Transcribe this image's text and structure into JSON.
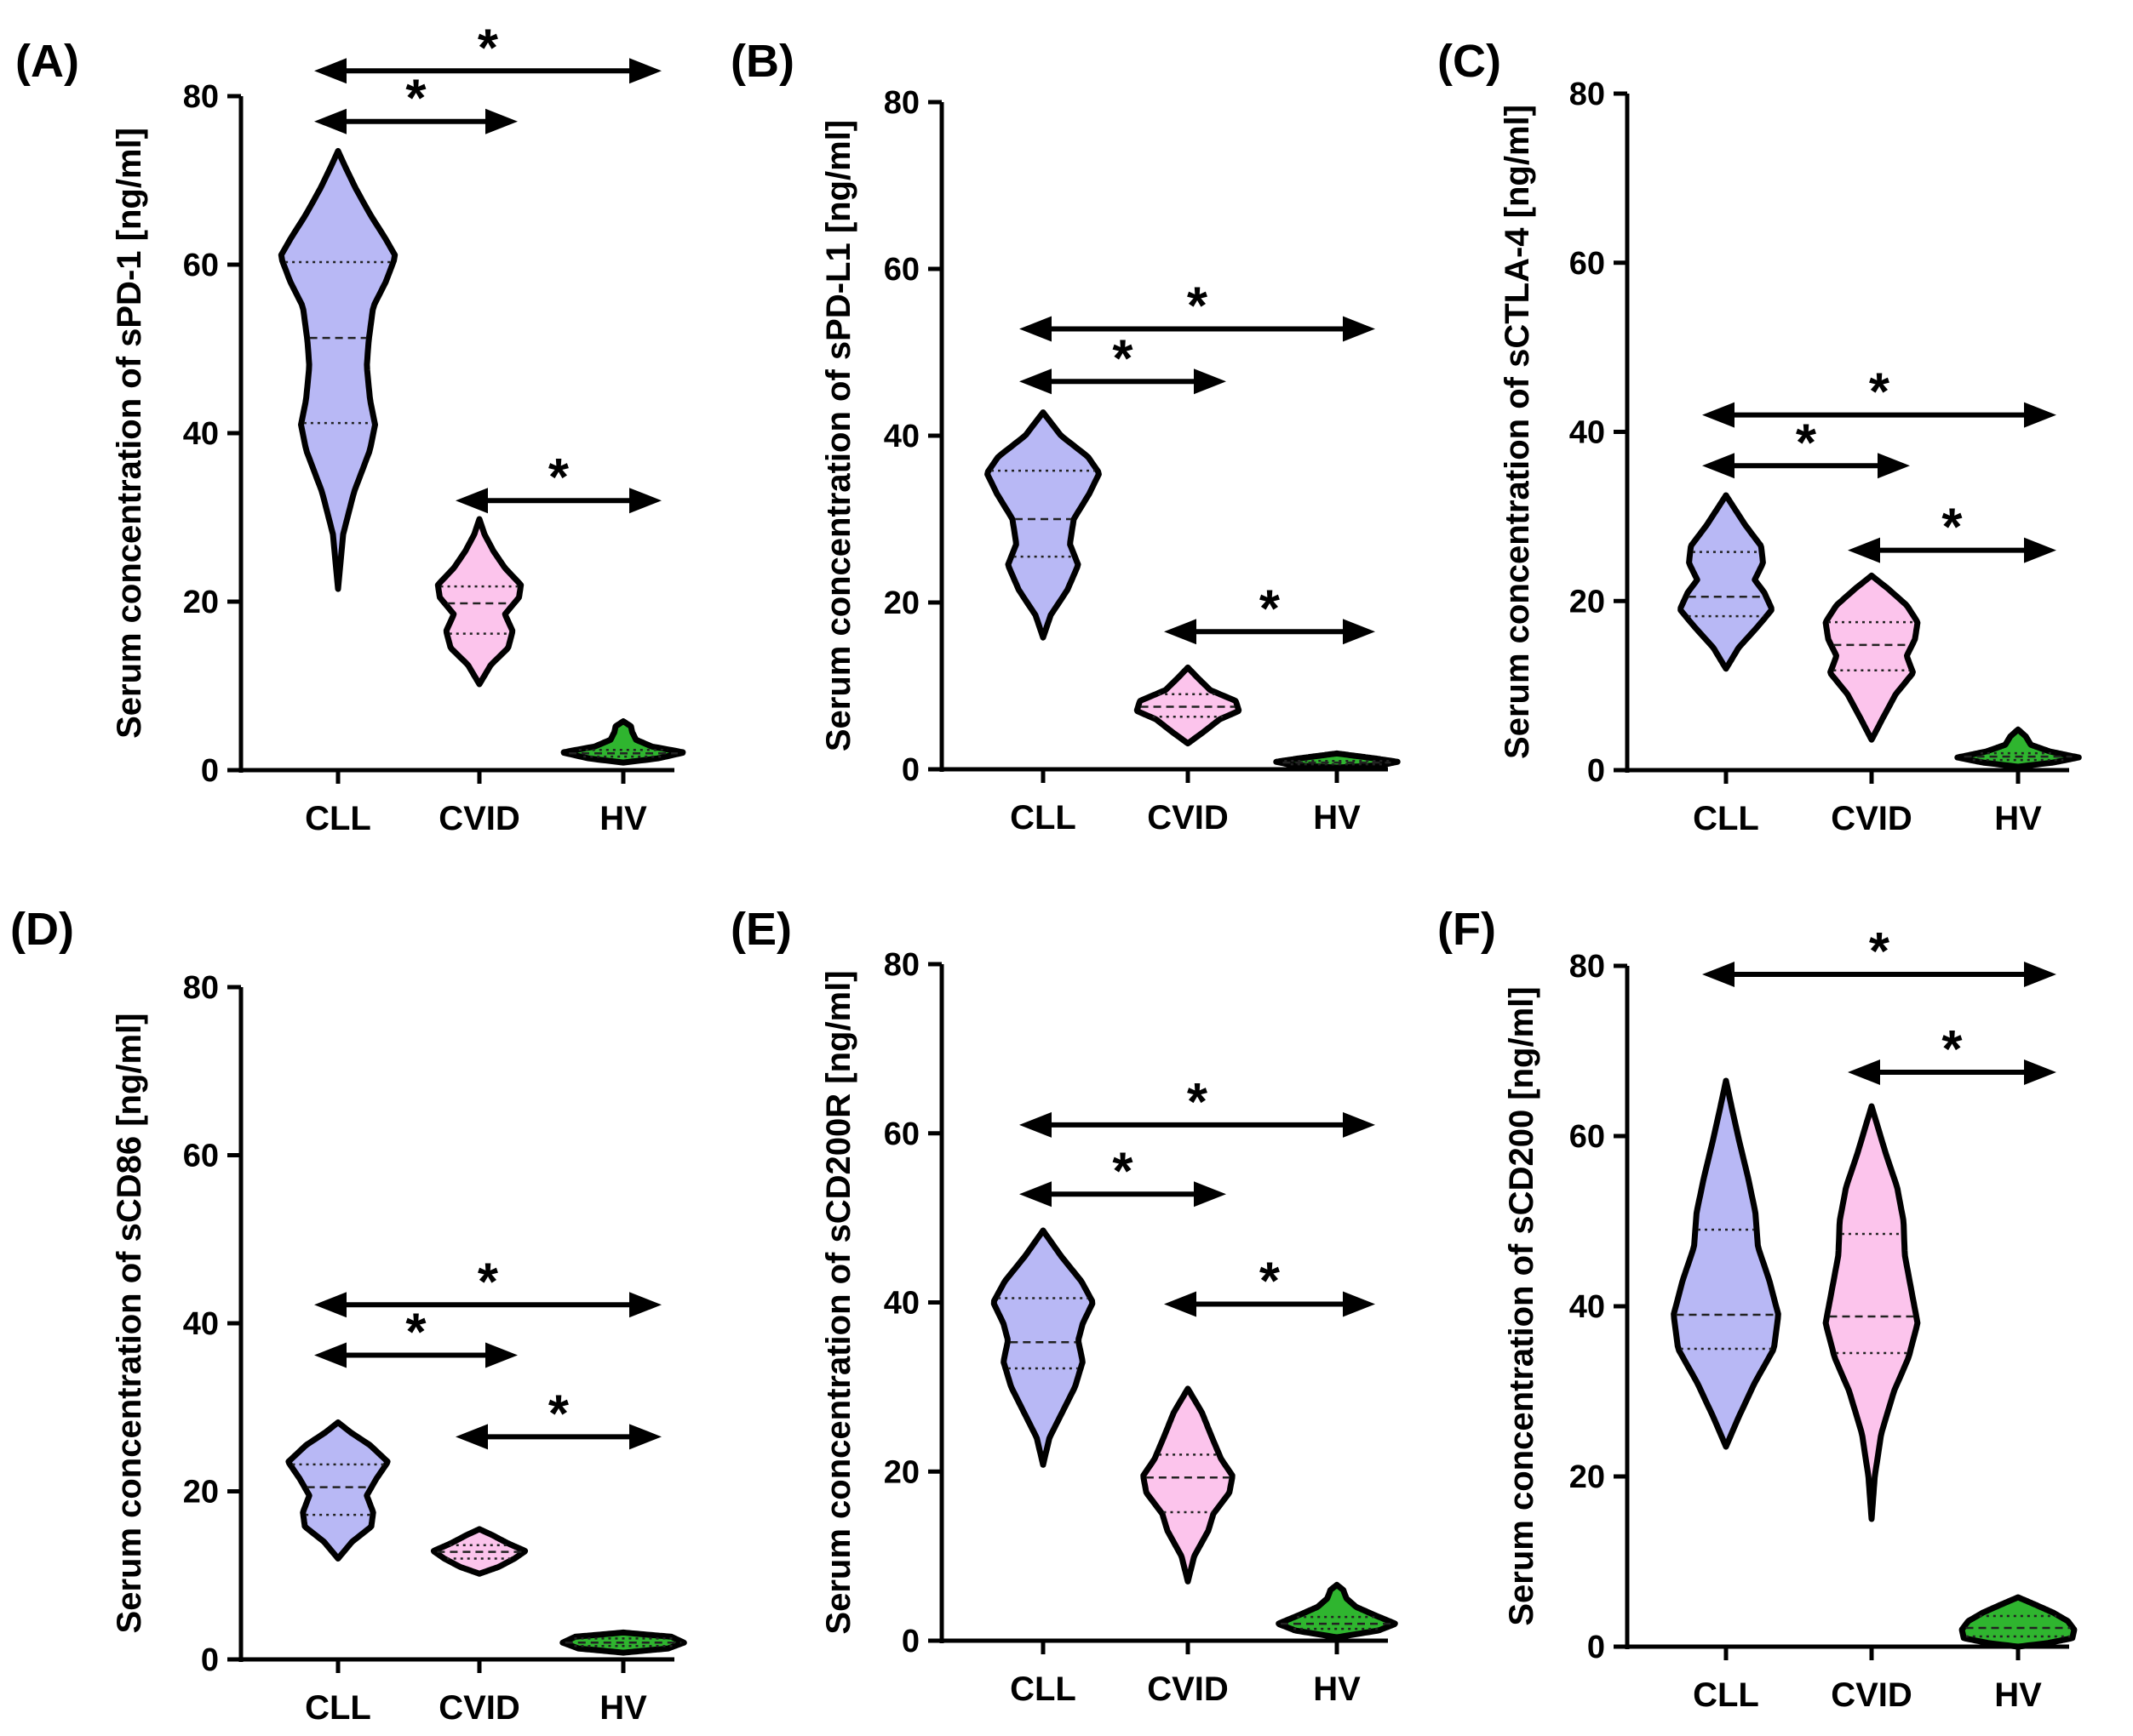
{
  "figure": {
    "colors": {
      "CLL": "#b8b8f5",
      "CVID": "#fcc4ec",
      "HV": "#2fb52f",
      "outline": "#000000"
    },
    "significance_marker": "*"
  },
  "chart_data": [
    {
      "type": "violin",
      "panel": "(A)",
      "ylabel": "Serum concentration of sPD-1 [ng/ml]",
      "ylim": [
        0,
        80
      ],
      "yticks": [
        0,
        20,
        40,
        60,
        80
      ],
      "categories": [
        "CLL",
        "CVID",
        "HV"
      ],
      "groups": [
        {
          "name": "CLL",
          "min": 21.5,
          "max": 73.5,
          "median": 51.3,
          "q1": 41.2,
          "q3": 60.3,
          "shape": [
            [
              21.5,
              0
            ],
            [
              28,
              0.08
            ],
            [
              33,
              0.25
            ],
            [
              38,
              0.5
            ],
            [
              41,
              0.58
            ],
            [
              44,
              0.5
            ],
            [
              48,
              0.45
            ],
            [
              51,
              0.48
            ],
            [
              55,
              0.55
            ],
            [
              58,
              0.75
            ],
            [
              61,
              0.9
            ],
            [
              63,
              0.75
            ],
            [
              66,
              0.5
            ],
            [
              69,
              0.28
            ],
            [
              71.5,
              0.12
            ],
            [
              73.5,
              0
            ]
          ]
        },
        {
          "name": "CVID",
          "min": 10.2,
          "max": 29.8,
          "median": 19.8,
          "q1": 16.2,
          "q3": 21.8,
          "shape": [
            [
              10.2,
              0
            ],
            [
              12.5,
              0.18
            ],
            [
              14.5,
              0.45
            ],
            [
              16.5,
              0.52
            ],
            [
              18.5,
              0.4
            ],
            [
              20.5,
              0.62
            ],
            [
              22,
              0.65
            ],
            [
              24,
              0.4
            ],
            [
              26,
              0.22
            ],
            [
              28,
              0.08
            ],
            [
              29.8,
              0
            ]
          ]
        },
        {
          "name": "HV",
          "min": 0.9,
          "max": 5.8,
          "median": 2.0,
          "q1": 1.6,
          "q3": 2.4,
          "shape": [
            [
              0.9,
              0
            ],
            [
              1.4,
              0.55
            ],
            [
              2.1,
              0.95
            ],
            [
              2.8,
              0.45
            ],
            [
              3.6,
              0.2
            ],
            [
              4.5,
              0.14
            ],
            [
              5.2,
              0.12
            ],
            [
              5.8,
              0
            ]
          ]
        }
      ],
      "comparisons": [
        {
          "from": "CLL",
          "to": "HV",
          "y": 83,
          "label": "*"
        },
        {
          "from": "CLL",
          "to": "CVID",
          "y": 77,
          "label": "*"
        },
        {
          "from": "CVID",
          "to": "HV",
          "y": 32,
          "label": "*"
        }
      ]
    },
    {
      "type": "violin",
      "panel": "(B)",
      "ylabel": "Serum concentration of sPD-L1 [ng/ml]",
      "ylim": [
        0,
        80
      ],
      "yticks": [
        0,
        20,
        40,
        60,
        80
      ],
      "categories": [
        "CLL",
        "CVID",
        "HV"
      ],
      "groups": [
        {
          "name": "CLL",
          "min": 15.8,
          "max": 42.8,
          "median": 30.0,
          "q1": 25.5,
          "q3": 35.8,
          "shape": [
            [
              15.8,
              0
            ],
            [
              18.5,
              0.12
            ],
            [
              21.5,
              0.38
            ],
            [
              24.5,
              0.55
            ],
            [
              27,
              0.42
            ],
            [
              30,
              0.48
            ],
            [
              33,
              0.72
            ],
            [
              35.5,
              0.88
            ],
            [
              37.5,
              0.7
            ],
            [
              40,
              0.28
            ],
            [
              42.8,
              0
            ]
          ]
        },
        {
          "name": "CVID",
          "min": 3.1,
          "max": 12.2,
          "median": 7.5,
          "q1": 6.3,
          "q3": 9.0,
          "shape": [
            [
              3.1,
              0
            ],
            [
              4.5,
              0.25
            ],
            [
              6,
              0.5
            ],
            [
              7,
              0.8
            ],
            [
              8.2,
              0.75
            ],
            [
              9.5,
              0.35
            ],
            [
              11,
              0.15
            ],
            [
              12.2,
              0
            ]
          ]
        },
        {
          "name": "HV",
          "min": 0.2,
          "max": 1.9,
          "median": 0.8,
          "q1": 0.6,
          "q3": 1.0,
          "shape": [
            [
              0.2,
              0
            ],
            [
              0.5,
              0.7
            ],
            [
              0.9,
              0.95
            ],
            [
              1.3,
              0.6
            ],
            [
              1.9,
              0
            ]
          ]
        }
      ],
      "comparisons": [
        {
          "from": "CLL",
          "to": "HV",
          "y": 52.8,
          "label": "*"
        },
        {
          "from": "CLL",
          "to": "CVID",
          "y": 46.5,
          "label": "*"
        },
        {
          "from": "CVID",
          "to": "HV",
          "y": 16.5,
          "label": "*"
        }
      ]
    },
    {
      "type": "violin",
      "panel": "(C)",
      "ylabel": "Serum concentration of sCTLA-4 [ng/ml]",
      "ylim": [
        0,
        80
      ],
      "yticks": [
        0,
        20,
        40,
        60,
        80
      ],
      "categories": [
        "CLL",
        "CVID",
        "HV"
      ],
      "groups": [
        {
          "name": "CLL",
          "min": 12.0,
          "max": 32.5,
          "median": 20.5,
          "q1": 18.2,
          "q3": 25.8,
          "shape": [
            [
              12,
              0
            ],
            [
              14.5,
              0.2
            ],
            [
              17,
              0.5
            ],
            [
              19,
              0.72
            ],
            [
              21,
              0.6
            ],
            [
              22.5,
              0.45
            ],
            [
              24.5,
              0.58
            ],
            [
              26.5,
              0.55
            ],
            [
              29,
              0.3
            ],
            [
              32.5,
              0
            ]
          ]
        },
        {
          "name": "CVID",
          "min": 3.6,
          "max": 23.0,
          "median": 14.8,
          "q1": 11.8,
          "q3": 17.5,
          "shape": [
            [
              3.6,
              0
            ],
            [
              6.5,
              0.2
            ],
            [
              9,
              0.38
            ],
            [
              11.5,
              0.65
            ],
            [
              13.5,
              0.55
            ],
            [
              15.5,
              0.68
            ],
            [
              17.5,
              0.72
            ],
            [
              19.5,
              0.55
            ],
            [
              21.5,
              0.25
            ],
            [
              23,
              0
            ]
          ]
        },
        {
          "name": "HV",
          "min": 0.4,
          "max": 4.8,
          "median": 1.6,
          "q1": 1.2,
          "q3": 2.0,
          "shape": [
            [
              0.4,
              0
            ],
            [
              0.9,
              0.55
            ],
            [
              1.5,
              0.95
            ],
            [
              2.2,
              0.5
            ],
            [
              3,
              0.2
            ],
            [
              4,
              0.12
            ],
            [
              4.8,
              0
            ]
          ]
        }
      ],
      "comparisons": [
        {
          "from": "CLL",
          "to": "HV",
          "y": 42,
          "label": "*"
        },
        {
          "from": "CLL",
          "to": "CVID",
          "y": 36,
          "label": "*"
        },
        {
          "from": "CVID",
          "to": "HV",
          "y": 26,
          "label": "*"
        }
      ]
    },
    {
      "type": "violin",
      "panel": "(D)",
      "ylabel": "Serum concentration of sCD86 [ng/ml]",
      "ylim": [
        0,
        80
      ],
      "yticks": [
        0,
        20,
        40,
        60,
        80
      ],
      "categories": [
        "CLL",
        "CVID",
        "HV"
      ],
      "groups": [
        {
          "name": "CLL",
          "min": 12.0,
          "max": 28.2,
          "median": 20.5,
          "q1": 17.2,
          "q3": 23.2,
          "shape": [
            [
              12,
              0
            ],
            [
              14,
              0.22
            ],
            [
              15.8,
              0.52
            ],
            [
              17.5,
              0.55
            ],
            [
              19.5,
              0.45
            ],
            [
              21.5,
              0.6
            ],
            [
              23.5,
              0.78
            ],
            [
              25.5,
              0.5
            ],
            [
              27,
              0.2
            ],
            [
              28.2,
              0
            ]
          ]
        },
        {
          "name": "CVID",
          "min": 10.2,
          "max": 15.5,
          "median": 12.8,
          "q1": 12.0,
          "q3": 13.6,
          "shape": [
            [
              10.2,
              0
            ],
            [
              11,
              0.3
            ],
            [
              12,
              0.55
            ],
            [
              12.9,
              0.72
            ],
            [
              13.8,
              0.45
            ],
            [
              14.8,
              0.2
            ],
            [
              15.5,
              0
            ]
          ]
        },
        {
          "name": "HV",
          "min": 0.8,
          "max": 3.2,
          "median": 2.0,
          "q1": 1.6,
          "q3": 2.5,
          "shape": [
            [
              0.8,
              0
            ],
            [
              1.3,
              0.7
            ],
            [
              2,
              0.95
            ],
            [
              2.7,
              0.75
            ],
            [
              3.2,
              0
            ]
          ]
        }
      ],
      "comparisons": [
        {
          "from": "CLL",
          "to": "HV",
          "y": 42.2,
          "label": "*"
        },
        {
          "from": "CLL",
          "to": "CVID",
          "y": 36.2,
          "label": "*"
        },
        {
          "from": "CVID",
          "to": "HV",
          "y": 26.5,
          "label": "*"
        }
      ]
    },
    {
      "type": "violin",
      "panel": "(E)",
      "ylabel": "Serum concentration of sCD200R [ng/ml]",
      "ylim": [
        0,
        80
      ],
      "yticks": [
        0,
        20,
        40,
        60,
        80
      ],
      "categories": [
        "CLL",
        "CVID",
        "HV"
      ],
      "groups": [
        {
          "name": "CLL",
          "min": 20.8,
          "max": 48.5,
          "median": 35.3,
          "q1": 32.2,
          "q3": 40.5,
          "shape": [
            [
              20.8,
              0
            ],
            [
              24,
              0.1
            ],
            [
              27,
              0.3
            ],
            [
              30,
              0.5
            ],
            [
              33,
              0.62
            ],
            [
              35.5,
              0.55
            ],
            [
              37.5,
              0.62
            ],
            [
              40,
              0.78
            ],
            [
              42.5,
              0.6
            ],
            [
              45.5,
              0.28
            ],
            [
              48.5,
              0
            ]
          ]
        },
        {
          "name": "CVID",
          "min": 7.0,
          "max": 29.8,
          "median": 19.3,
          "q1": 15.2,
          "q3": 22.0,
          "shape": [
            [
              7,
              0
            ],
            [
              10,
              0.1
            ],
            [
              13,
              0.32
            ],
            [
              15,
              0.4
            ],
            [
              17.5,
              0.65
            ],
            [
              19.5,
              0.7
            ],
            [
              21.5,
              0.52
            ],
            [
              24,
              0.38
            ],
            [
              27,
              0.22
            ],
            [
              29.8,
              0
            ]
          ]
        },
        {
          "name": "HV",
          "min": 0.4,
          "max": 6.6,
          "median": 2.0,
          "q1": 1.4,
          "q3": 2.8,
          "shape": [
            [
              0.4,
              0
            ],
            [
              1.2,
              0.65
            ],
            [
              2,
              0.92
            ],
            [
              3,
              0.6
            ],
            [
              4,
              0.3
            ],
            [
              5,
              0.15
            ],
            [
              6,
              0.1
            ],
            [
              6.6,
              0
            ]
          ]
        }
      ],
      "comparisons": [
        {
          "from": "CLL",
          "to": "HV",
          "y": 61,
          "label": "*"
        },
        {
          "from": "CLL",
          "to": "CVID",
          "y": 52.8,
          "label": "*"
        },
        {
          "from": "CVID",
          "to": "HV",
          "y": 39.8,
          "label": "*"
        }
      ]
    },
    {
      "type": "violin",
      "panel": "(F)",
      "ylabel": "Serum concentration of sCD200 [ng/ml]",
      "ylim": [
        0,
        80
      ],
      "yticks": [
        0,
        20,
        40,
        60,
        80
      ],
      "categories": [
        "CLL",
        "CVID",
        "HV"
      ],
      "groups": [
        {
          "name": "CLL",
          "min": 23.5,
          "max": 66.5,
          "median": 39.0,
          "q1": 35.0,
          "q3": 49.0,
          "shape": [
            [
              23.5,
              0
            ],
            [
              27,
              0.2
            ],
            [
              31,
              0.45
            ],
            [
              35,
              0.75
            ],
            [
              39,
              0.82
            ],
            [
              43,
              0.68
            ],
            [
              47,
              0.5
            ],
            [
              51,
              0.46
            ],
            [
              55,
              0.35
            ],
            [
              59,
              0.22
            ],
            [
              63,
              0.1
            ],
            [
              66.5,
              0
            ]
          ]
        },
        {
          "name": "CVID",
          "min": 15.0,
          "max": 63.5,
          "median": 38.8,
          "q1": 34.5,
          "q3": 48.5,
          "shape": [
            [
              15,
              0
            ],
            [
              20,
              0.05
            ],
            [
              25,
              0.15
            ],
            [
              30,
              0.35
            ],
            [
              34,
              0.58
            ],
            [
              38,
              0.72
            ],
            [
              42,
              0.62
            ],
            [
              46,
              0.52
            ],
            [
              50,
              0.5
            ],
            [
              54,
              0.4
            ],
            [
              58,
              0.22
            ],
            [
              61,
              0.1
            ],
            [
              63.5,
              0
            ]
          ]
        },
        {
          "name": "HV",
          "min": 0.0,
          "max": 5.8,
          "median": 2.2,
          "q1": 1.2,
          "q3": 3.6,
          "shape": [
            [
              0,
              0
            ],
            [
              0.4,
              0.45
            ],
            [
              1,
              0.85
            ],
            [
              2,
              0.88
            ],
            [
              3,
              0.78
            ],
            [
              4,
              0.55
            ],
            [
              5,
              0.25
            ],
            [
              5.8,
              0
            ]
          ]
        }
      ],
      "comparisons": [
        {
          "from": "CLL",
          "to": "HV",
          "y": 79,
          "label": "*"
        },
        {
          "from": "CVID",
          "to": "HV",
          "y": 67.5,
          "label": "*"
        }
      ]
    }
  ]
}
